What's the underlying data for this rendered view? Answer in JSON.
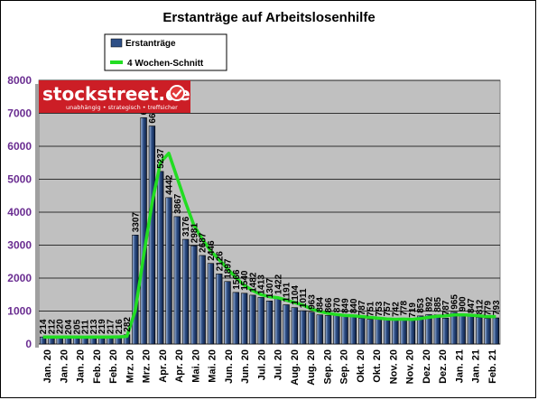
{
  "chart_data": {
    "type": "bar",
    "title": "Erstanträge auf Arbeitslosenhilfe",
    "xlabel": "",
    "ylabel": "",
    "ylim": [
      0,
      8000
    ],
    "yticks": [
      "0",
      "1000",
      "2000",
      "3000",
      "4000",
      "5000",
      "6000",
      "7000",
      "8000"
    ],
    "grid": true,
    "legend_placement": "top-left",
    "colors": {
      "plot_background": "#c0c0c0",
      "bar_fill": "#2e4f86",
      "bar_highlight": "#a9bfe2",
      "average_line": "#22dd22",
      "ytick_color": "#6a2d91",
      "logo_background": "#cc1e26"
    },
    "categories": [
      "Jan. 20",
      "Jan. 20",
      "Jan. 20",
      "Jan. 20",
      "Feb. 20",
      "Feb. 20",
      "Feb. 20",
      "Feb. 20",
      "Mrz. 20",
      "Mrz. 20",
      "Mrz. 20",
      "Mrz. 20",
      "Apr. 20",
      "Apr. 20",
      "Apr. 20",
      "Apr. 20",
      "Mai. 20",
      "Mai. 20",
      "Mai. 20",
      "Mai. 20",
      "Mai. 20",
      "Jun. 20",
      "Jun. 20",
      "Jun. 20",
      "Jun. 20",
      "Jul. 20",
      "Jul. 20",
      "Jul. 20",
      "Jul. 20",
      "Aug. 20",
      "Aug. 20",
      "Aug. 20",
      "Aug. 20",
      "Sep. 20",
      "Sep. 20",
      "Sep. 20",
      "Sep. 20",
      "Okt. 20",
      "Okt. 20",
      "Okt. 20",
      "Okt. 20",
      "Okt. 20",
      "Nov. 20",
      "Nov. 20",
      "Nov. 20",
      "Nov. 20",
      "Dez. 20",
      "Dez. 20",
      "Dez. 20",
      "Dez. 20",
      "Jan. 21",
      "Jan. 21",
      "Jan. 21",
      "Jan. 21",
      "Feb. 21"
    ],
    "xtick_labels": [
      "Jan. 20",
      "Jan. 20",
      "Jan. 20",
      "Feb. 20",
      "Feb. 20",
      "Mrz. 20",
      "Mrz. 20",
      "Apr. 20",
      "Apr. 20",
      "Mai. 20",
      "Mai. 20",
      "Jun. 20",
      "Jun. 20",
      "Jul. 20",
      "Jul. 20",
      "Aug. 20",
      "Aug. 20",
      "Sep. 20",
      "Sep. 20",
      "Okt. 20",
      "Okt. 20",
      "Nov. 20",
      "Nov. 20",
      "Dez. 20",
      "Dez. 20",
      "Jan. 21",
      "Jan. 21",
      "Feb. 21"
    ],
    "series": [
      {
        "name": "Erstanträge",
        "values": [
          214,
          212,
          220,
          204,
          205,
          211,
          213,
          219,
          217,
          216,
          282,
          3307,
          6867,
          6615,
          5237,
          4442,
          3867,
          3176,
          2981,
          2687,
          2446,
          2126,
          1897,
          1566,
          1540,
          1482,
          1413,
          1307,
          1422,
          1191,
          1104,
          1011,
          963,
          884,
          866,
          870,
          849,
          840,
          787,
          751,
          753,
          757,
          742,
          778,
          719,
          853,
          892,
          885,
          787,
          965,
          900,
          847,
          812,
          779,
          793
        ]
      },
      {
        "name": "4 Wochen-Schnitt",
        "values": [
          215,
          213,
          214,
          213,
          210,
          209,
          211,
          212,
          215,
          216,
          233,
          1005,
          2668,
          4268,
          5506,
          5790,
          5040,
          4290,
          3597,
          3178,
          2822,
          2560,
          2289,
          2010,
          1782,
          1621,
          1500,
          1435,
          1406,
          1333,
          1257,
          1182,
          1067,
          990,
          931,
          896,
          867,
          856,
          836,
          807,
          783,
          762,
          751,
          757,
          749,
          773,
          811,
          842,
          854,
          882,
          887,
          874,
          856,
          834,
          833
        ]
      }
    ],
    "data_labels": [
      "214",
      "212",
      "220",
      "204",
      "205",
      "211",
      "213",
      "219",
      "217",
      "216",
      "282",
      "3307",
      "6867",
      "6615",
      "5237",
      "4442",
      "3867",
      "3176",
      "2981",
      "2687",
      "2446",
      "2126",
      "1897",
      "1566",
      "1540",
      "1482",
      "1413",
      "1307",
      "1422",
      "1191",
      "1104",
      "1011",
      "963",
      "884",
      "866",
      "870",
      "849",
      "840",
      "787",
      "751",
      "753",
      "757",
      "742",
      "778",
      "719",
      "853",
      "892",
      "885",
      "787",
      "965",
      "900",
      "847",
      "812",
      "779",
      "793"
    ]
  },
  "logo": {
    "name": "stockstreet.de",
    "tagline": "unabhängig • strategisch • treffsicher",
    "mark_icon": "checkmark-icon"
  }
}
